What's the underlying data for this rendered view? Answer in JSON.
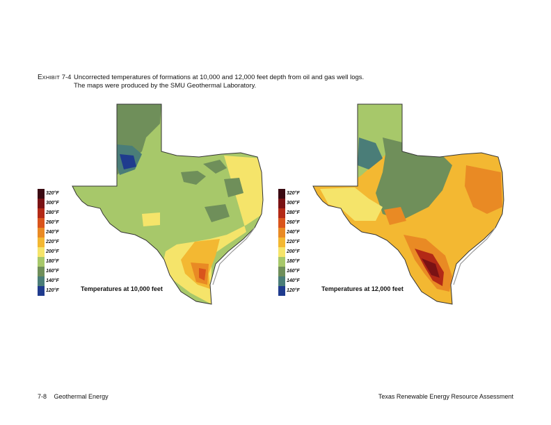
{
  "caption": {
    "label_first": "E",
    "label_rest": "XHIBIT",
    "label_number": "7-4",
    "line1": "Uncorrected temperatures of formations at 10,000 and 12,000 feet depth from oil and gas well logs.",
    "line2": "The maps were produced by the SMU Geothermal Laboratory."
  },
  "legend": [
    {
      "label": "320°F",
      "color": "#3b0a12"
    },
    {
      "label": "300°F",
      "color": "#7a1214"
    },
    {
      "label": "280°F",
      "color": "#b32916"
    },
    {
      "label": "260°F",
      "color": "#d9541c"
    },
    {
      "label": "240°F",
      "color": "#e98a24"
    },
    {
      "label": "220°F",
      "color": "#f3b832"
    },
    {
      "label": "200°F",
      "color": "#f5e46a"
    },
    {
      "label": "180°F",
      "color": "#a7c86a"
    },
    {
      "label": "160°F",
      "color": "#6f8f5a"
    },
    {
      "label": "140°F",
      "color": "#4a7d78"
    },
    {
      "label": "120°F",
      "color": "#1f3b8e"
    }
  ],
  "maps": [
    {
      "title": "Temperatures at 10,000 feet"
    },
    {
      "title": "Temperatures at 12,000 feet"
    }
  ],
  "footer": {
    "page_number": "7-8",
    "section": "Geothermal Energy",
    "document_title": "Texas Renewable Energy Resource Assessment"
  }
}
